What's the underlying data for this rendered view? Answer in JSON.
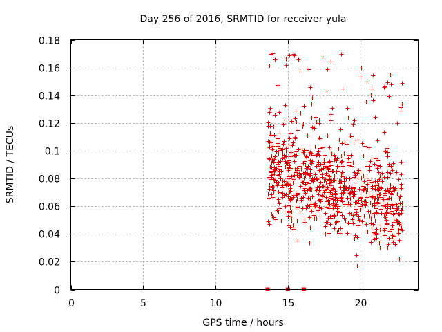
{
  "chart_data": {
    "type": "scatter",
    "title": "Day 256 of 2016, SRMTID for receiver yula",
    "xlabel": "GPS time / hours",
    "ylabel": "SRMTID / TECUs",
    "xlim": [
      0,
      24
    ],
    "ylim": [
      0,
      0.18
    ],
    "xticks": [
      0,
      5,
      10,
      15,
      20
    ],
    "xtick_labels": [
      "0",
      "5",
      "10",
      "15",
      "20"
    ],
    "yticks": [
      0,
      0.02,
      0.04,
      0.06,
      0.08,
      0.1,
      0.12,
      0.14,
      0.16,
      0.18
    ],
    "ytick_labels": [
      "0",
      "0.02",
      "0.04",
      "0.06",
      "0.08",
      "0.1",
      "0.12",
      "0.14",
      "0.16",
      "0.18"
    ],
    "grid": true,
    "marker": "+",
    "color": "#e00000",
    "series": [
      {
        "name": "SRMTID",
        "x_range": [
          13.6,
          22.9
        ],
        "y_range": [
          0.017,
          0.171
        ],
        "notable_points": [
          {
            "x": 14.1,
            "y": 0.166
          },
          {
            "x": 15.1,
            "y": 0.169
          },
          {
            "x": 18.7,
            "y": 0.17
          },
          {
            "x": 15.8,
            "y": 0.158
          },
          {
            "x": 19.8,
            "y": 0.017
          },
          {
            "x": 22.7,
            "y": 0.022
          },
          {
            "x": 22.8,
            "y": 0.129
          }
        ]
      }
    ],
    "zero_points_x": [
      13.6,
      15.0,
      16.1
    ]
  }
}
